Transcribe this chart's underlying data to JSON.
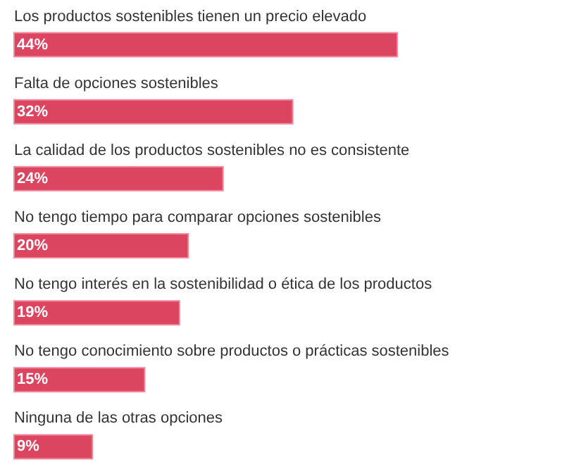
{
  "chart_data": {
    "type": "bar",
    "orientation": "horizontal",
    "categories": [
      "Los productos sostenibles tienen un precio elevado",
      "Falta de opciones sostenibles",
      "La calidad de los productos sostenibles no es consistente",
      "No tengo tiempo para comparar opciones sostenibles",
      "No tengo interés en la sostenibilidad o ética de los productos",
      "No tengo conocimiento sobre productos o prácticas sostenibles",
      "Ninguna de las otras opciones"
    ],
    "values": [
      44,
      32,
      24,
      20,
      19,
      15,
      9
    ],
    "value_labels": [
      "44%",
      "32%",
      "24%",
      "20%",
      "19%",
      "15%",
      "9%"
    ],
    "color": "#dc4560"
  }
}
